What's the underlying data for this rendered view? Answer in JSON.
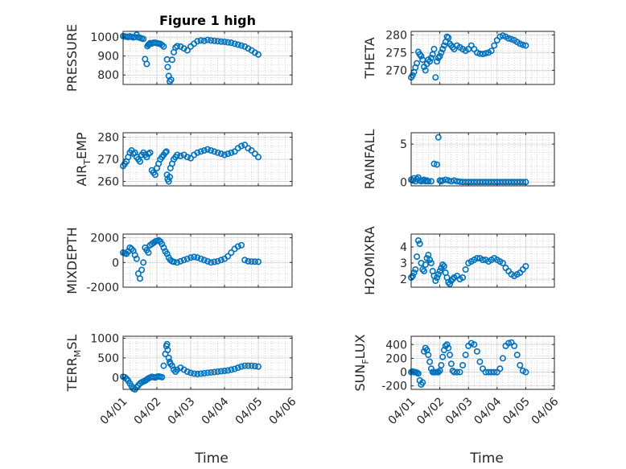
{
  "figure": {
    "title": "Figure 1 high"
  },
  "colors": {
    "marker": "#0072BD",
    "axis": "#262626",
    "grid": "#b8b8b8"
  },
  "chart_data": [
    {
      "id": "pressure",
      "type": "scatter",
      "title": "Figure 1 high",
      "ylabel": "PRESSURE",
      "ylabel_main": "PRESSURE",
      "ylabel_sub": "",
      "ylabel_tail": "",
      "xlabel": "",
      "xlim": [
        0,
        5
      ],
      "ylim": [
        750,
        1030
      ],
      "yticks": [
        800,
        900,
        1000
      ],
      "ytick_labels": [
        "800",
        "900",
        "1000"
      ],
      "xticks": [
        0,
        1,
        2,
        3,
        4,
        5
      ],
      "xtick_labels": [],
      "x": [
        0,
        0.05,
        0.1,
        0.15,
        0.2,
        0.25,
        0.3,
        0.35,
        0.4,
        0.45,
        0.5,
        0.55,
        0.6,
        0.65,
        0.7,
        0.72,
        0.75,
        0.78,
        0.8,
        0.85,
        0.9,
        0.95,
        1.0,
        1.05,
        1.1,
        1.15,
        1.2,
        1.3,
        1.32,
        1.35,
        1.38,
        1.42,
        1.45,
        1.5,
        1.55,
        1.6,
        1.7,
        1.8,
        1.9,
        2.0,
        2.1,
        2.2,
        2.3,
        2.4,
        2.5,
        2.6,
        2.7,
        2.8,
        2.9,
        3.0,
        3.1,
        3.2,
        3.3,
        3.4,
        3.5,
        3.6,
        3.7,
        3.8,
        3.9,
        4.0
      ],
      "y": [
        1005,
        1003,
        1002,
        1000,
        1004,
        1001,
        998,
        1000,
        1012,
        999,
        996,
        993,
        990,
        884,
        858,
        952,
        960,
        962,
        968,
        966,
        970,
        970,
        968,
        966,
        964,
        958,
        950,
        882,
        842,
        795,
        766,
        775,
        880,
        920,
        945,
        952,
        950,
        940,
        930,
        950,
        965,
        978,
        982,
        980,
        985,
        982,
        980,
        978,
        976,
        975,
        972,
        970,
        965,
        960,
        955,
        950,
        940,
        930,
        918,
        908
      ]
    },
    {
      "id": "theta",
      "type": "scatter",
      "title": "",
      "ylabel": "THETA",
      "ylabel_main": "THETA",
      "ylabel_sub": "",
      "ylabel_tail": "",
      "xlabel": "",
      "xlim": [
        0,
        5
      ],
      "ylim": [
        266,
        281
      ],
      "yticks": [
        270,
        275,
        280
      ],
      "ytick_labels": [
        "270",
        "275",
        "280"
      ],
      "xticks": [
        0,
        1,
        2,
        3,
        4,
        5
      ],
      "xtick_labels": [],
      "x": [
        0,
        0.05,
        0.1,
        0.15,
        0.2,
        0.25,
        0.3,
        0.35,
        0.4,
        0.45,
        0.5,
        0.55,
        0.6,
        0.65,
        0.7,
        0.75,
        0.8,
        0.85,
        0.9,
        0.95,
        1.0,
        1.05,
        1.1,
        1.15,
        1.2,
        1.25,
        1.3,
        1.35,
        1.4,
        1.45,
        1.5,
        1.6,
        1.7,
        1.8,
        1.9,
        2.0,
        2.1,
        2.2,
        2.3,
        2.4,
        2.5,
        2.6,
        2.7,
        2.8,
        2.9,
        3.0,
        3.1,
        3.2,
        3.3,
        3.4,
        3.5,
        3.6,
        3.7,
        3.8,
        3.9,
        4.0
      ],
      "y": [
        268,
        268.6,
        269.5,
        270.8,
        272,
        275.2,
        274.5,
        274,
        273,
        271,
        270,
        271.8,
        273,
        272.5,
        273.5,
        274.5,
        276,
        268,
        272.5,
        273.5,
        274,
        275,
        276,
        277,
        278,
        279.5,
        279.2,
        277.5,
        277,
        276.5,
        276,
        277,
        276.5,
        276,
        275.5,
        276,
        277,
        276,
        275,
        274.7,
        274.6,
        274.8,
        275,
        275.5,
        277,
        278.5,
        279.5,
        279.8,
        279.5,
        279,
        278.8,
        278.5,
        278,
        277.5,
        277.2,
        277
      ]
    },
    {
      "id": "air_temp",
      "type": "scatter",
      "title": "",
      "ylabel": "AIR_TEMP",
      "ylabel_main": "AIR",
      "ylabel_sub": "T",
      "ylabel_tail": "EMP",
      "xlabel": "",
      "xlim": [
        0,
        5
      ],
      "ylim": [
        258,
        282
      ],
      "yticks": [
        260,
        270,
        280
      ],
      "ytick_labels": [
        "260",
        "270",
        "280"
      ],
      "xticks": [
        0,
        1,
        2,
        3,
        4,
        5
      ],
      "xtick_labels": [],
      "x": [
        0,
        0.05,
        0.1,
        0.15,
        0.2,
        0.25,
        0.3,
        0.35,
        0.4,
        0.45,
        0.5,
        0.55,
        0.6,
        0.65,
        0.7,
        0.75,
        0.8,
        0.85,
        0.9,
        0.95,
        1.0,
        1.05,
        1.1,
        1.15,
        1.2,
        1.25,
        1.28,
        1.3,
        1.32,
        1.35,
        1.38,
        1.4,
        1.45,
        1.5,
        1.55,
        1.6,
        1.7,
        1.8,
        1.9,
        2.0,
        2.1,
        2.2,
        2.3,
        2.4,
        2.5,
        2.6,
        2.7,
        2.8,
        2.9,
        3.0,
        3.1,
        3.2,
        3.3,
        3.4,
        3.5,
        3.6,
        3.7,
        3.8,
        3.9,
        4.0
      ],
      "y": [
        267,
        268,
        269,
        271,
        273,
        274,
        272.5,
        273,
        271,
        270,
        269,
        272,
        273,
        272,
        271,
        272.5,
        273,
        265,
        264,
        263,
        266,
        268,
        270,
        271,
        272,
        273,
        273.5,
        263,
        261,
        260,
        262,
        266,
        268,
        270,
        271,
        272,
        271.5,
        272,
        271,
        270.5,
        272,
        273,
        273.5,
        274,
        274.5,
        274,
        273.5,
        273,
        272.5,
        272,
        272.5,
        273,
        273.5,
        275,
        276,
        276.5,
        275,
        274,
        272.5,
        271
      ]
    },
    {
      "id": "rainfall",
      "type": "scatter",
      "title": "",
      "ylabel": "RAINFALL",
      "ylabel_main": "RAINFALL",
      "ylabel_sub": "",
      "ylabel_tail": "",
      "xlabel": "",
      "xlim": [
        0,
        5
      ],
      "ylim": [
        -0.5,
        6.5
      ],
      "yticks": [
        0,
        5
      ],
      "ytick_labels": [
        "0",
        "5"
      ],
      "xticks": [
        0,
        1,
        2,
        3,
        4,
        5
      ],
      "xtick_labels": [],
      "x": [
        0,
        0.05,
        0.1,
        0.15,
        0.2,
        0.25,
        0.3,
        0.35,
        0.4,
        0.45,
        0.5,
        0.55,
        0.6,
        0.7,
        0.8,
        0.9,
        0.95,
        1.0,
        1.05,
        1.1,
        1.2,
        1.3,
        1.4,
        1.5,
        1.6,
        1.7,
        1.8,
        1.9,
        2.0,
        2.1,
        2.2,
        2.3,
        2.4,
        2.5,
        2.6,
        2.7,
        2.8,
        2.9,
        3.0,
        3.1,
        3.2,
        3.3,
        3.4,
        3.5,
        3.6,
        3.7,
        3.8,
        3.9,
        4.0
      ],
      "y": [
        0.3,
        0.2,
        0.5,
        0.1,
        0.4,
        0.6,
        0.2,
        0.1,
        0.2,
        0.3,
        0.1,
        0.2,
        0.1,
        0.1,
        2.4,
        2.3,
        5.9,
        0.2,
        0.1,
        0.2,
        0.3,
        0.2,
        0.1,
        0.2,
        0.1,
        0.05,
        0,
        0,
        0,
        0,
        0,
        0,
        0,
        0,
        0,
        0,
        0,
        0,
        0,
        0,
        0,
        0,
        0,
        0,
        0,
        0,
        0,
        0,
        0
      ]
    },
    {
      "id": "mixdepth",
      "type": "scatter",
      "title": "",
      "ylabel": "MIXDEPTH",
      "ylabel_main": "MIXDEPTH",
      "ylabel_sub": "",
      "ylabel_tail": "",
      "xlabel": "",
      "xlim": [
        0,
        5
      ],
      "ylim": [
        -2000,
        2300
      ],
      "yticks": [
        -2000,
        0,
        2000
      ],
      "ytick_labels": [
        "-2000",
        "0",
        "2000"
      ],
      "xticks": [
        0,
        1,
        2,
        3,
        4,
        5
      ],
      "xtick_labels": [],
      "x": [
        0,
        0.05,
        0.1,
        0.15,
        0.2,
        0.25,
        0.3,
        0.35,
        0.4,
        0.45,
        0.5,
        0.55,
        0.6,
        0.65,
        0.7,
        0.75,
        0.8,
        0.85,
        0.9,
        0.95,
        1.0,
        1.05,
        1.1,
        1.15,
        1.2,
        1.25,
        1.3,
        1.35,
        1.4,
        1.45,
        1.5,
        1.6,
        1.7,
        1.8,
        1.9,
        2.0,
        2.1,
        2.2,
        2.3,
        2.4,
        2.5,
        2.6,
        2.7,
        2.8,
        2.9,
        3.0,
        3.1,
        3.2,
        3.3,
        3.4,
        3.5,
        3.6,
        3.7,
        3.8,
        3.9,
        4.0
      ],
      "y": [
        800,
        750,
        700,
        900,
        1200,
        1100,
        950,
        600,
        300,
        -900,
        -1300,
        -600,
        0,
        1200,
        1000,
        800,
        1400,
        1500,
        1600,
        1700,
        1750,
        1800,
        1700,
        1500,
        1200,
        900,
        700,
        400,
        200,
        100,
        50,
        0,
        100,
        200,
        300,
        400,
        450,
        400,
        300,
        200,
        100,
        0,
        50,
        100,
        200,
        300,
        500,
        800,
        1100,
        1300,
        1400,
        200,
        100,
        80,
        70,
        60
      ]
    },
    {
      "id": "h2omixra",
      "type": "scatter",
      "title": "",
      "ylabel": "H2OMIXRA",
      "ylabel_main": "H2OMIXRA",
      "ylabel_sub": "",
      "ylabel_tail": "",
      "xlabel": "",
      "xlim": [
        0,
        5
      ],
      "ylim": [
        1.5,
        4.8
      ],
      "yticks": [
        2,
        3,
        4
      ],
      "ytick_labels": [
        "2",
        "3",
        "4"
      ],
      "xticks": [
        0,
        1,
        2,
        3,
        4,
        5
      ],
      "xtick_labels": [],
      "x": [
        0,
        0.05,
        0.1,
        0.15,
        0.2,
        0.25,
        0.3,
        0.35,
        0.4,
        0.45,
        0.5,
        0.55,
        0.6,
        0.65,
        0.7,
        0.75,
        0.8,
        0.85,
        0.9,
        0.95,
        1.0,
        1.05,
        1.1,
        1.15,
        1.2,
        1.25,
        1.3,
        1.35,
        1.4,
        1.45,
        1.5,
        1.6,
        1.7,
        1.8,
        1.9,
        2.0,
        2.1,
        2.2,
        2.3,
        2.4,
        2.5,
        2.6,
        2.7,
        2.8,
        2.9,
        3.0,
        3.1,
        3.2,
        3.3,
        3.4,
        3.5,
        3.6,
        3.7,
        3.8,
        3.9,
        4.0
      ],
      "y": [
        2.1,
        2.2,
        2.4,
        2.6,
        3.4,
        4.4,
        4.2,
        3.0,
        2.6,
        2.5,
        2.9,
        3.3,
        3.5,
        3.2,
        3.0,
        2.5,
        2.2,
        1.9,
        2.1,
        2.3,
        2.5,
        2.7,
        2.9,
        2.8,
        2.4,
        2.1,
        1.8,
        1.7,
        1.9,
        2.0,
        2.1,
        2.2,
        2.0,
        2.1,
        2.6,
        3.0,
        3.1,
        3.2,
        3.3,
        3.3,
        3.2,
        3.2,
        3.1,
        3.2,
        3.3,
        3.2,
        3.1,
        3.0,
        2.7,
        2.5,
        2.3,
        2.2,
        2.3,
        2.4,
        2.6,
        2.8
      ]
    },
    {
      "id": "terr_msl",
      "type": "scatter",
      "title": "",
      "ylabel": "TERR_MSL",
      "ylabel_main": "TERR",
      "ylabel_sub": "M",
      "ylabel_tail": "SL",
      "xlabel": "Time",
      "xlim": [
        0,
        5
      ],
      "ylim": [
        -300,
        1050
      ],
      "yticks": [
        0,
        500,
        1000
      ],
      "ytick_labels": [
        "0",
        "500",
        "1000"
      ],
      "xticks": [
        0,
        1,
        2,
        3,
        4,
        5
      ],
      "xtick_labels": [
        "04/01",
        "04/02",
        "04/03",
        "04/04",
        "04/05",
        "04/06"
      ],
      "x": [
        0,
        0.05,
        0.1,
        0.15,
        0.2,
        0.25,
        0.3,
        0.35,
        0.4,
        0.45,
        0.5,
        0.55,
        0.6,
        0.65,
        0.7,
        0.75,
        0.8,
        0.85,
        0.9,
        0.95,
        1.0,
        1.05,
        1.1,
        1.15,
        1.2,
        1.25,
        1.28,
        1.3,
        1.32,
        1.35,
        1.38,
        1.4,
        1.45,
        1.5,
        1.55,
        1.6,
        1.7,
        1.8,
        1.9,
        2.0,
        2.1,
        2.2,
        2.3,
        2.4,
        2.5,
        2.6,
        2.7,
        2.8,
        2.9,
        3.0,
        3.1,
        3.2,
        3.3,
        3.4,
        3.5,
        3.6,
        3.7,
        3.8,
        3.9,
        4.0
      ],
      "y": [
        20,
        10,
        -30,
        -80,
        -150,
        -220,
        -280,
        -300,
        -250,
        -200,
        -150,
        -120,
        -100,
        -80,
        -50,
        -20,
        0,
        20,
        10,
        0,
        20,
        30,
        20,
        10,
        300,
        600,
        800,
        850,
        700,
        500,
        400,
        350,
        300,
        200,
        150,
        200,
        250,
        200,
        150,
        120,
        100,
        90,
        100,
        110,
        120,
        130,
        140,
        150,
        160,
        170,
        180,
        200,
        220,
        250,
        280,
        300,
        300,
        300,
        290,
        280
      ]
    },
    {
      "id": "sun_flux",
      "type": "scatter",
      "title": "",
      "ylabel": "SUN_FLUX",
      "ylabel_main": "SUN",
      "ylabel_sub": "F",
      "ylabel_tail": "LUX",
      "xlabel": "Time",
      "xlim": [
        0,
        5
      ],
      "ylim": [
        -250,
        520
      ],
      "yticks": [
        -200,
        0,
        200,
        400
      ],
      "ytick_labels": [
        "-200",
        "0",
        "200",
        "400"
      ],
      "xticks": [
        0,
        1,
        2,
        3,
        4,
        5
      ],
      "xtick_labels": [
        "04/01",
        "04/02",
        "04/03",
        "04/04",
        "04/05",
        "04/06"
      ],
      "x": [
        0,
        0.05,
        0.1,
        0.15,
        0.2,
        0.25,
        0.3,
        0.35,
        0.4,
        0.45,
        0.5,
        0.55,
        0.6,
        0.65,
        0.7,
        0.75,
        0.8,
        0.85,
        0.9,
        0.95,
        1.0,
        1.05,
        1.1,
        1.15,
        1.2,
        1.25,
        1.3,
        1.35,
        1.4,
        1.45,
        1.5,
        1.6,
        1.7,
        1.8,
        1.9,
        2.0,
        2.1,
        2.2,
        2.3,
        2.4,
        2.5,
        2.6,
        2.7,
        2.8,
        2.9,
        3.0,
        3.1,
        3.2,
        3.3,
        3.4,
        3.5,
        3.6,
        3.7,
        3.8,
        3.9,
        4.0
      ],
      "y": [
        0,
        10,
        0,
        0,
        -10,
        -20,
        -120,
        -180,
        -150,
        300,
        350,
        320,
        250,
        150,
        50,
        0,
        0,
        0,
        0,
        0,
        20,
        100,
        220,
        320,
        380,
        400,
        350,
        250,
        120,
        20,
        0,
        0,
        0,
        100,
        250,
        380,
        420,
        400,
        300,
        150,
        50,
        0,
        0,
        0,
        0,
        0,
        50,
        200,
        380,
        420,
        430,
        380,
        250,
        100,
        20,
        0
      ]
    }
  ]
}
